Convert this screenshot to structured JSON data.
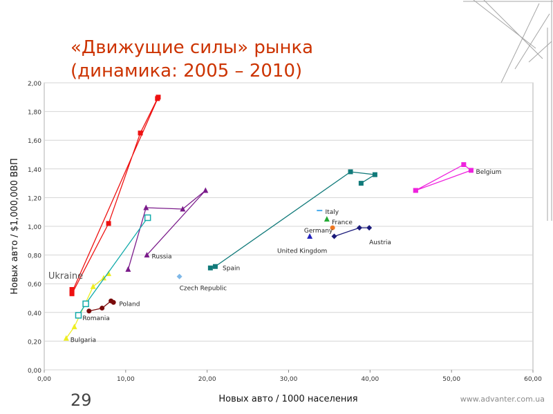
{
  "slide": {
    "title_line1": "«Движущие силы» рынка",
    "title_line2": "(динамика: 2005 – 2010)",
    "page_number": "29",
    "website": "www.advanter.com.ua"
  },
  "colors": {
    "title": "#cc3300",
    "accent_decor": "#a6a6a6"
  },
  "chart_data": {
    "type": "scatter",
    "xlabel": "Новых авто / 1000 населения",
    "ylabel": "Новых авто / $1,000,000 ВВП",
    "xlim": [
      0,
      60
    ],
    "ylim": [
      0,
      2
    ],
    "x_ticks": [
      0,
      10,
      20,
      30,
      40,
      50,
      60
    ],
    "y_ticks": [
      0,
      0.2,
      0.4,
      0.6,
      0.8,
      1.0,
      1.2,
      1.4,
      1.6,
      1.8,
      2.0
    ],
    "x_tick_labels": [
      "0,00",
      "10,00",
      "20,00",
      "30,00",
      "40,00",
      "50,00",
      "60,00"
    ],
    "y_tick_labels": [
      "0,00",
      "0,20",
      "0,40",
      "0,60",
      "0,80",
      "1,00",
      "1,20",
      "1,40",
      "1,60",
      "1,80",
      "2,00"
    ],
    "grid": "horizontal",
    "series": [
      {
        "name": "Ukraine",
        "color": "#ee1111",
        "marker": "square",
        "connected": true,
        "points": [
          [
            3.4,
            0.56
          ],
          [
            3.4,
            0.53
          ],
          [
            7.9,
            1.02
          ],
          [
            11.8,
            1.65
          ],
          [
            13.9,
            1.89
          ],
          [
            14.0,
            1.9
          ],
          [
            3.4,
            0.54
          ]
        ]
      },
      {
        "name": "Russia",
        "color": "#7a1a8a",
        "marker": "triangle",
        "connected": true,
        "points": [
          [
            10.3,
            0.7
          ],
          [
            12.5,
            1.13
          ],
          [
            17.0,
            1.12
          ],
          [
            19.8,
            1.25
          ],
          [
            12.6,
            0.8
          ]
        ]
      },
      {
        "name": "Bulgaria",
        "color": "#eeee22",
        "marker": "triangle",
        "connected": true,
        "points": [
          [
            2.7,
            0.22
          ],
          [
            3.7,
            0.3
          ],
          [
            6.0,
            0.58
          ],
          [
            7.3,
            0.64
          ],
          [
            7.9,
            0.67
          ]
        ]
      },
      {
        "name": "Romania",
        "color": "#11aaaa",
        "marker": "square-open",
        "connected": true,
        "points": [
          [
            4.2,
            0.38
          ],
          [
            5.1,
            0.46
          ],
          [
            12.7,
            1.06
          ]
        ]
      },
      {
        "name": "Poland",
        "color": "#7a0a0a",
        "marker": "circle",
        "connected": true,
        "points": [
          [
            5.5,
            0.41
          ],
          [
            7.1,
            0.43
          ],
          [
            8.2,
            0.48
          ],
          [
            8.5,
            0.47
          ]
        ]
      },
      {
        "name": "Czech Republic",
        "color": "#7fb8e8",
        "marker": "diamond",
        "connected": false,
        "points": [
          [
            16.6,
            0.65
          ]
        ]
      },
      {
        "name": "Spain",
        "color": "#117a7a",
        "marker": "square",
        "connected": true,
        "points": [
          [
            20.4,
            0.71
          ],
          [
            21.0,
            0.72
          ],
          [
            37.6,
            1.38
          ],
          [
            40.6,
            1.36
          ],
          [
            38.9,
            1.3
          ]
        ]
      },
      {
        "name": "Italy",
        "color": "#44aaee",
        "marker": "dash",
        "connected": false,
        "points": [
          [
            33.8,
            1.11
          ]
        ]
      },
      {
        "name": "France",
        "color": "#22aa33",
        "marker": "triangle",
        "connected": false,
        "points": [
          [
            34.7,
            1.05
          ]
        ]
      },
      {
        "name": "Germany",
        "color": "#ee7722",
        "marker": "circle",
        "connected": false,
        "points": [
          [
            35.4,
            0.99
          ]
        ]
      },
      {
        "name": "United Kingdom",
        "color": "#2222bb",
        "marker": "triangle",
        "connected": false,
        "points": [
          [
            32.6,
            0.93
          ]
        ]
      },
      {
        "name": "Austria",
        "color": "#1a1a7a",
        "marker": "diamond",
        "connected": true,
        "points": [
          [
            35.6,
            0.93
          ],
          [
            38.7,
            0.99
          ],
          [
            39.9,
            0.99
          ]
        ]
      },
      {
        "name": "Belgium",
        "color": "#ee22dd",
        "marker": "square",
        "connected": true,
        "points": [
          [
            45.6,
            1.25
          ],
          [
            51.5,
            1.43
          ],
          [
            52.4,
            1.39
          ],
          [
            45.6,
            1.25
          ]
        ]
      }
    ],
    "annotations": [
      {
        "text": "Ukraine",
        "x": 0.5,
        "y": 0.65,
        "size": "large",
        "color": "#555555"
      },
      {
        "text": "Russia",
        "x": 13.2,
        "y": 0.79
      },
      {
        "text": "Bulgaria",
        "x": 3.2,
        "y": 0.21
      },
      {
        "text": "Romania",
        "x": 4.7,
        "y": 0.36
      },
      {
        "text": "Poland",
        "x": 9.2,
        "y": 0.46
      },
      {
        "text": "Czech Republic",
        "x": 16.6,
        "y": 0.57
      },
      {
        "text": "Spain",
        "x": 21.9,
        "y": 0.71
      },
      {
        "text": "Italy",
        "x": 34.5,
        "y": 1.1
      },
      {
        "text": "France",
        "x": 35.3,
        "y": 1.03
      },
      {
        "text": "Germany",
        "x": 31.9,
        "y": 0.97
      },
      {
        "text": "United Kingdom",
        "x": 28.6,
        "y": 0.83
      },
      {
        "text": "Austria",
        "x": 39.9,
        "y": 0.89
      },
      {
        "text": "Belgium",
        "x": 53.0,
        "y": 1.38
      }
    ]
  }
}
